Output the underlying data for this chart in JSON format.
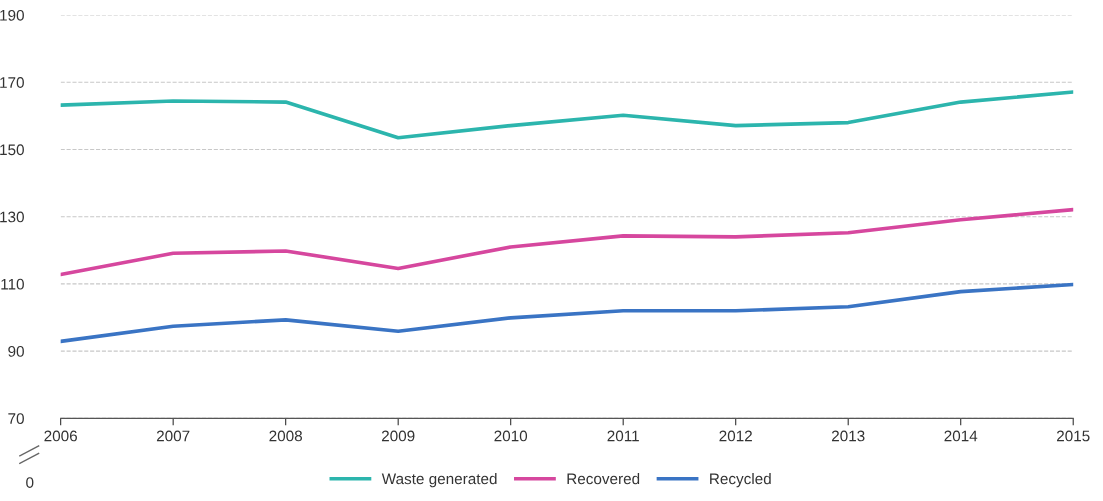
{
  "chart_data": {
    "type": "line",
    "x": [
      2006,
      2007,
      2008,
      2009,
      2010,
      2011,
      2012,
      2013,
      2014,
      2015
    ],
    "series": [
      {
        "name": "Waste generated",
        "color": "#2cb5ad",
        "values": [
          163.2,
          164.4,
          164.1,
          153.5,
          157.1,
          160.2,
          157.1,
          158.0,
          164.1,
          167.1
        ]
      },
      {
        "name": "Recovered",
        "color": "#d6479e",
        "values": [
          112.8,
          119.1,
          119.8,
          114.6,
          121.0,
          124.3,
          124.0,
          125.2,
          129.1,
          132.1
        ]
      },
      {
        "name": "Recycled",
        "color": "#3a74c4",
        "values": [
          92.9,
          97.4,
          99.3,
          95.9,
          99.9,
          102.0,
          102.0,
          103.2,
          107.7,
          109.8
        ]
      }
    ],
    "xlim": [
      2006,
      2015
    ],
    "xticks": [
      2006,
      2007,
      2008,
      2009,
      2010,
      2011,
      2012,
      2013,
      2014,
      2015
    ],
    "ylim": [
      70,
      190
    ],
    "yticks": [
      70,
      90,
      110,
      130,
      150,
      170,
      190
    ],
    "annotations": [
      "0"
    ],
    "grid": "y",
    "legend": "bottom",
    "marker": "none",
    "line_style": "solid"
  }
}
